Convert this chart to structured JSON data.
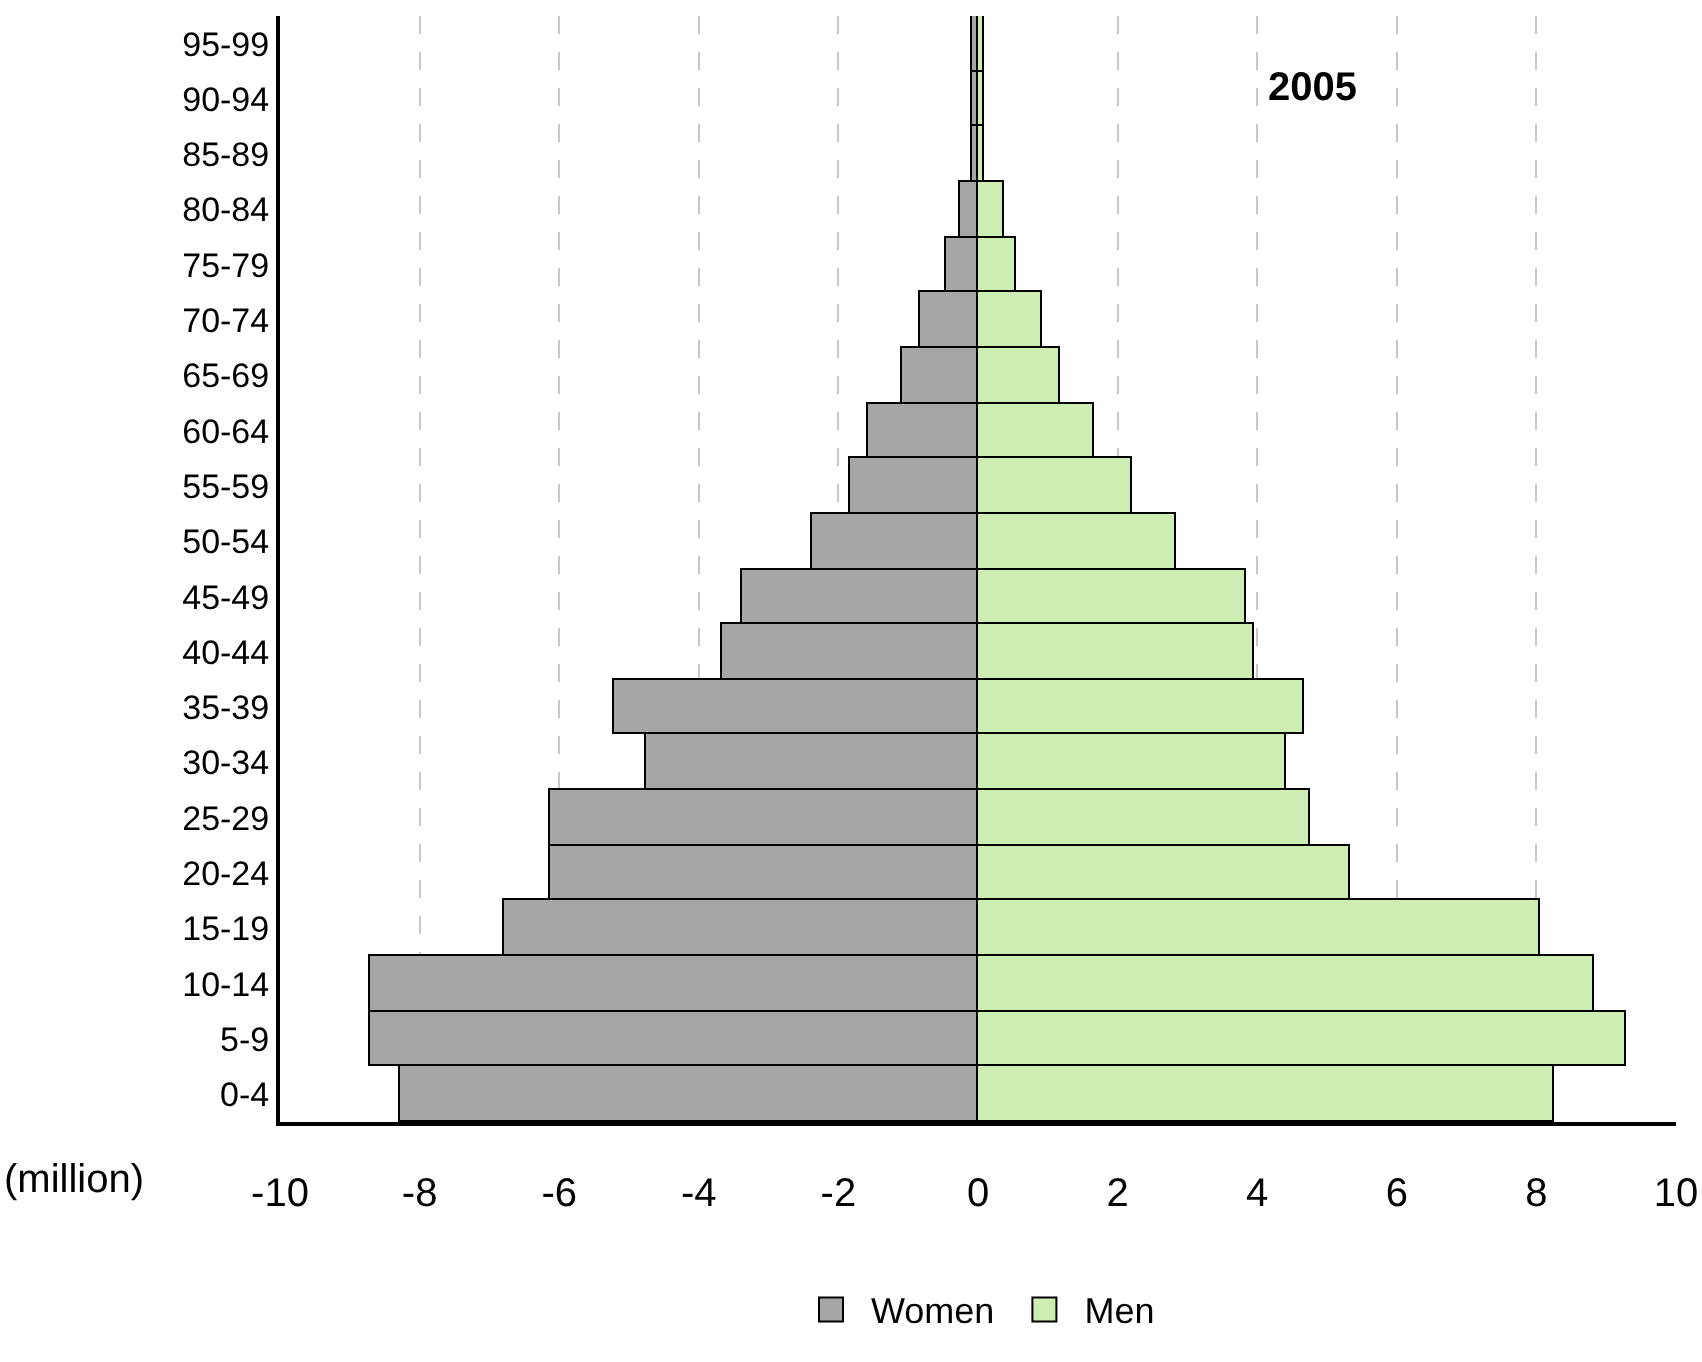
{
  "chart_data": {
    "type": "bar",
    "orientation": "horizontal",
    "categories": [
      "95-99",
      "90-94",
      "85-89",
      "80-84",
      "75-79",
      "70-74",
      "65-69",
      "60-64",
      "55-59",
      "50-54",
      "45-49",
      "40-44",
      "35-39",
      "30-34",
      "25-29",
      "20-24",
      "15-19",
      "10-14",
      "5-9",
      "0-4"
    ],
    "series": [
      {
        "name": "Women",
        "color": "#a6a6a6",
        "values": [
          -0.1,
          -0.1,
          -0.1,
          -0.27,
          -0.45,
          -0.82,
          -1.1,
          -1.57,
          -1.83,
          -2.39,
          -3.39,
          -3.66,
          -5.22,
          -4.77,
          -6.14,
          -6.14,
          -6.79,
          -8.71,
          -8.71,
          -8.27
        ]
      },
      {
        "name": "Men",
        "color": "#cdedb2",
        "values": [
          0.1,
          0.1,
          0.1,
          0.36,
          0.55,
          0.91,
          1.18,
          1.65,
          2.21,
          2.84,
          3.84,
          3.94,
          4.68,
          4.4,
          4.77,
          5.32,
          8.06,
          8.82,
          9.29,
          8.26
        ]
      }
    ],
    "xlim": [
      -10,
      10
    ],
    "xticks": [
      -10,
      -8,
      -6,
      -4,
      -2,
      0,
      2,
      4,
      6,
      8,
      10
    ],
    "xlabel": "(million)",
    "annotations": [
      "2005"
    ],
    "stacked": true,
    "grid": "x",
    "legend": "bottom"
  }
}
